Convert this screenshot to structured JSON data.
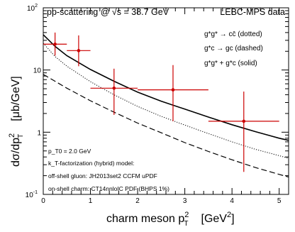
{
  "chart_data": {
    "type": "line",
    "title": "pp-scattering @ √s = 38.7 GeV",
    "experiment_label": "LEBC-MPS data",
    "xlabel": {
      "main": "charm meson p",
      "sup": "2",
      "sub": "T",
      "unit_pre": "[GeV",
      "unit_sup": "2",
      "unit_post": "]"
    },
    "ylabel": {
      "main": "dσ/dp",
      "sup": "2",
      "sub": "T",
      "unit": "[μb/GeV]"
    },
    "xlim": [
      0,
      5.2
    ],
    "ylim": [
      0.1,
      100
    ],
    "yscale": "log",
    "grid": false,
    "legend_position": "top-right",
    "x_ticks": [
      "0",
      "1",
      "2",
      "3",
      "4",
      "5"
    ],
    "y_ticks": [
      {
        "base": "10",
        "exp": "-1"
      },
      {
        "base": "1",
        "exp": ""
      },
      {
        "base": "10",
        "exp": ""
      },
      {
        "base": "10",
        "exp": "2"
      }
    ],
    "legend": [
      {
        "text": "g*g* → cc̄ (dotted)",
        "style": "dotted"
      },
      {
        "text": "g*c → gc (dashed)",
        "style": "dashed"
      },
      {
        "text": "g*g* + g*c (solid)",
        "style": "solid"
      }
    ],
    "annotations": [
      "p_T0 = 2.0 GeV",
      "k_T-factorization (hybrid) model:",
      "off-shell gluon: JH2013set2 CCFM uPDF",
      "on-shell charm: CT14nnloIC PDF (BHPS 1%)"
    ],
    "series": [
      {
        "name": "g*g* + g*c (solid)",
        "style": "solid",
        "x": [
          0.0,
          0.25,
          0.5,
          1.0,
          1.5,
          2.0,
          2.5,
          3.0,
          3.5,
          4.0,
          4.5,
          5.0,
          5.2
        ],
        "y": [
          37,
          24,
          17,
          10.2,
          6.6,
          4.4,
          3.15,
          2.35,
          1.75,
          1.32,
          1.02,
          0.8,
          0.74
        ]
      },
      {
        "name": "g*g* → cc̄ (dotted)",
        "style": "dotted",
        "x": [
          0.0,
          0.25,
          0.5,
          1.0,
          1.5,
          2.0,
          2.5,
          3.0,
          3.5,
          4.0,
          4.5,
          5.0,
          5.2
        ],
        "y": [
          27,
          16.5,
          11.5,
          6.5,
          4.0,
          2.6,
          1.8,
          1.3,
          0.95,
          0.7,
          0.53,
          0.42,
          0.38
        ]
      },
      {
        "name": "g*c → gc (dashed)",
        "style": "dashed",
        "x": [
          0.0,
          0.25,
          0.5,
          1.0,
          1.5,
          2.0,
          2.5,
          3.0,
          3.5,
          4.0,
          4.5,
          5.0,
          5.2
        ],
        "y": [
          8.5,
          6.6,
          5.1,
          3.2,
          2.1,
          1.4,
          0.98,
          0.68,
          0.49,
          0.36,
          0.27,
          0.21,
          0.19
        ]
      }
    ],
    "data_points": {
      "name": "LEBC-MPS data",
      "x": [
        0.25,
        0.75,
        1.5,
        2.75,
        4.25
      ],
      "x_low": [
        0.0,
        0.5,
        1.0,
        2.0,
        3.5
      ],
      "x_high": [
        0.5,
        1.0,
        2.0,
        3.5,
        5.0
      ],
      "y": [
        26,
        20.5,
        5.1,
        4.8,
        1.5
      ],
      "y_low": [
        17,
        11.5,
        1.9,
        1.5,
        0.23
      ],
      "y_high": [
        40,
        36,
        10.5,
        12,
        4.5
      ]
    },
    "colors": {
      "data": "#cc0000",
      "curves": "#000000",
      "frame": "#000000"
    }
  }
}
